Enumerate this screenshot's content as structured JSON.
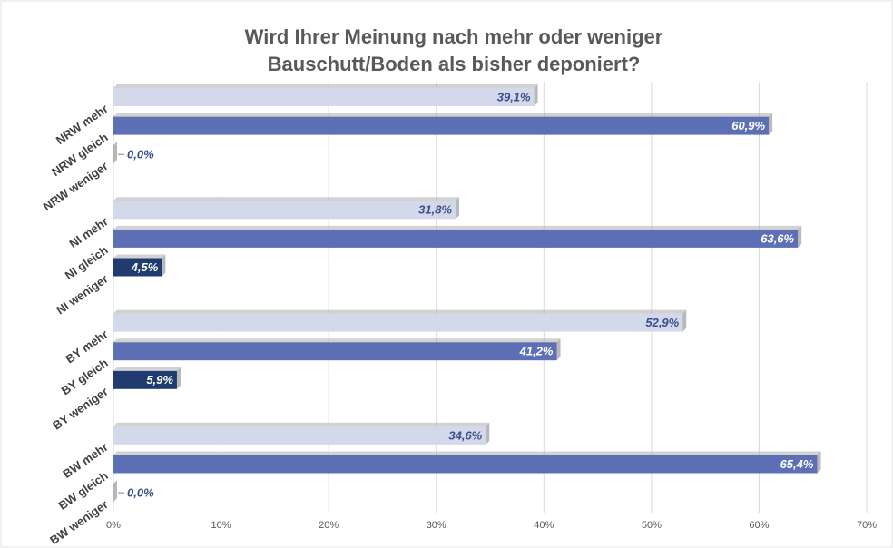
{
  "chart_data": {
    "type": "hbar",
    "title": [
      "Wird Ihrer Meinung nach mehr oder weniger",
      "Bauschutt/Boden als bisher deponiert?"
    ],
    "categories": [
      "NRW mehr",
      "NRW gleich",
      "NRW weniger",
      "NI mehr",
      "NI gleich",
      "NI weniger",
      "BY mehr",
      "BY gleich",
      "BY weniger",
      "BW mehr",
      "BW gleich",
      "BW weniger"
    ],
    "values": [
      39.1,
      60.9,
      0.0,
      31.8,
      63.6,
      4.5,
      52.9,
      41.2,
      5.9,
      34.6,
      65.4,
      0.0
    ],
    "value_labels": [
      "39,1%",
      "60,9%",
      "0,0%",
      "31,8%",
      "63,6%",
      "4,5%",
      "52,9%",
      "41,2%",
      "5,9%",
      "34,6%",
      "65,4%",
      "0,0%"
    ],
    "colors": [
      "#d3d8ea",
      "#5d70b6",
      "#1f3b70",
      "#d3d8ea",
      "#5d70b6",
      "#1f3b70",
      "#d3d8ea",
      "#5d70b6",
      "#1f3b70",
      "#d3d8ea",
      "#5d70b6",
      "#1f3b70"
    ],
    "xlim": [
      0,
      70
    ],
    "xticks": [
      {
        "value": 0,
        "label": "0%"
      },
      {
        "value": 10,
        "label": "10%"
      },
      {
        "value": 20,
        "label": "20%"
      },
      {
        "value": 30,
        "label": "30%"
      },
      {
        "value": 40,
        "label": "40%"
      },
      {
        "value": 50,
        "label": "50%"
      },
      {
        "value": 60,
        "label": "60%"
      },
      {
        "value": 70,
        "label": "70%"
      }
    ],
    "grid": true
  }
}
